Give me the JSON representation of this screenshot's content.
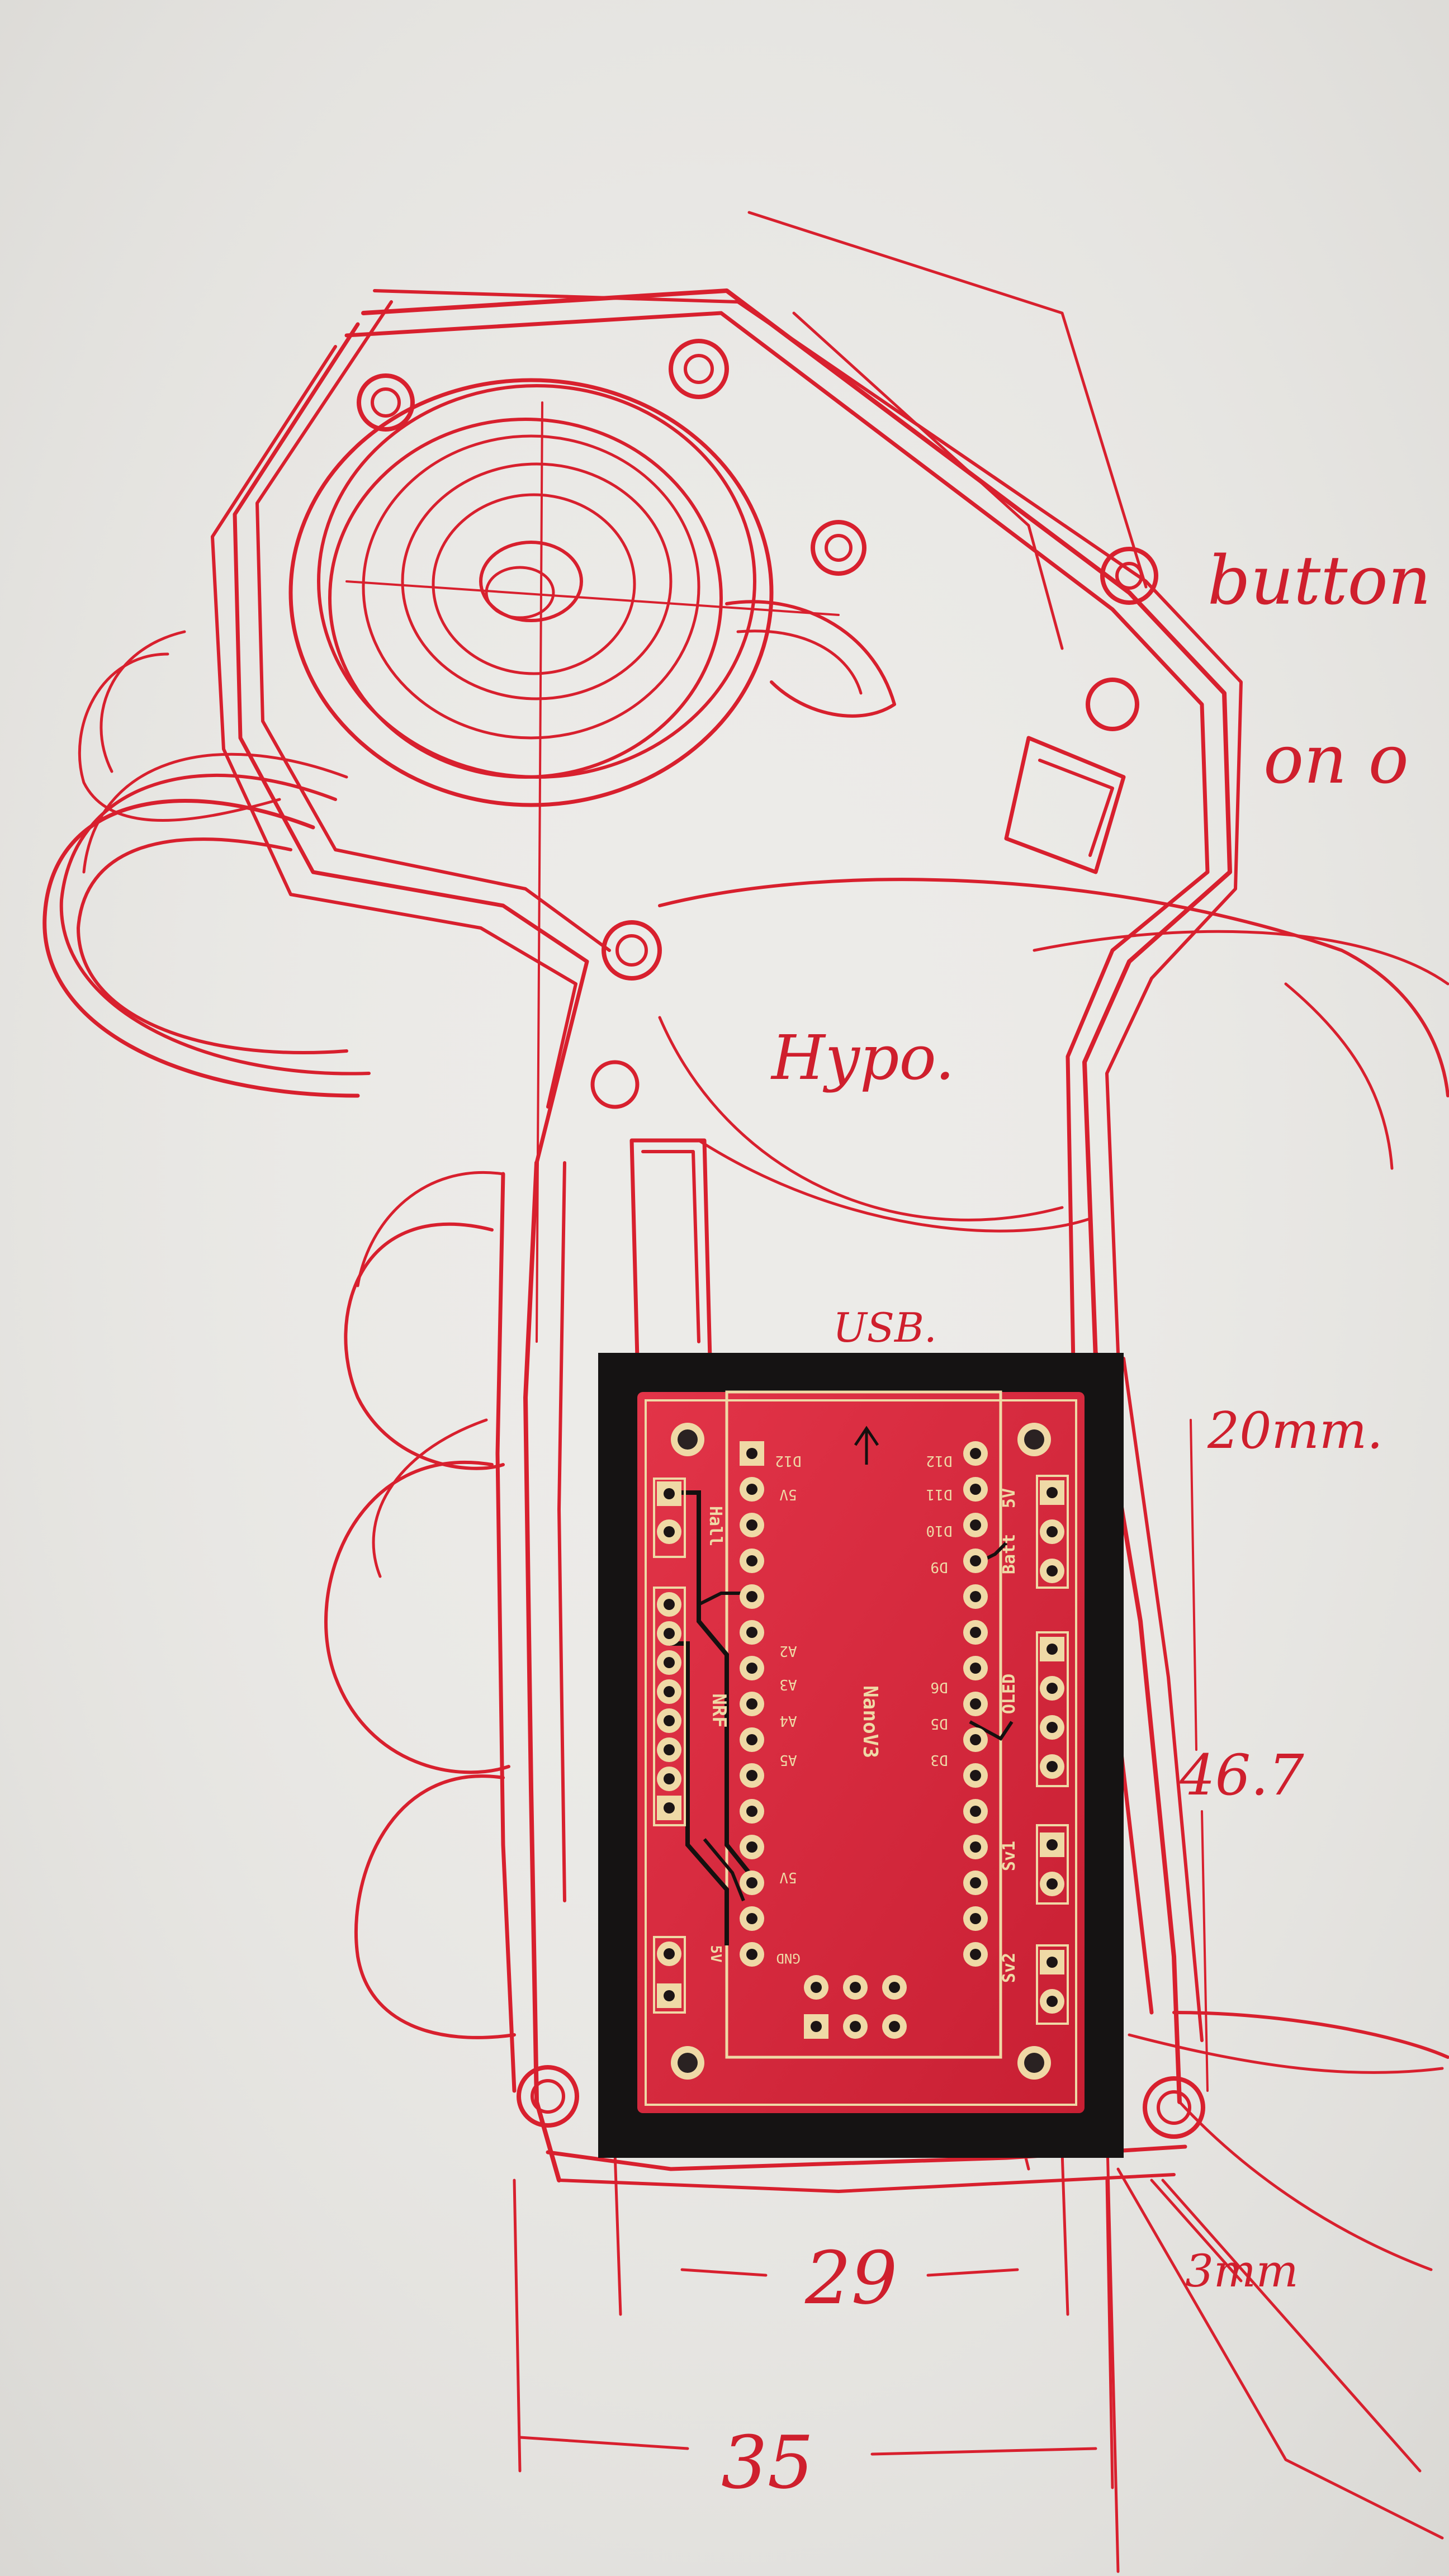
{
  "sketch": {
    "paper_color": "#ecebe8",
    "ink_color": "#d8202e",
    "annotations": {
      "button": "button",
      "on_off": "on o",
      "hypo": "Hypo.",
      "usb": "USB.",
      "size_20mm": "20mm.",
      "size_46_7": "46.7",
      "width_29": "29",
      "width_35": "35",
      "size_3mm": "3mm"
    }
  },
  "pcb": {
    "board_color": "#d9283e",
    "silk_color": "#efd9a6",
    "labels": {
      "module": "NanoV3",
      "hall": "Hall",
      "nrf": "NRF",
      "batt": "Batt",
      "batt_v": "5V",
      "oled": "OLED",
      "servo1": "Sv1",
      "servo2": "Sv2",
      "power_in": "5V",
      "power_gnd": "GND",
      "left_pins": [
        "D12",
        "5V",
        "A2",
        "A3",
        "A4",
        "A5",
        "5V",
        "GND"
      ],
      "right_pins": [
        "D12",
        "D11",
        "D10",
        "D9",
        "D6",
        "D5",
        "D3"
      ]
    }
  }
}
